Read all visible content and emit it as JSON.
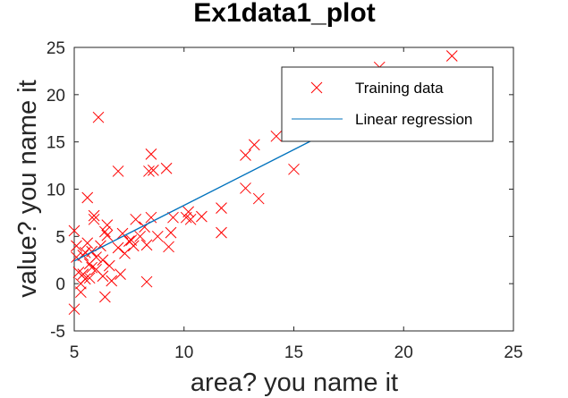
{
  "chart_data": {
    "type": "scatter",
    "title": "Ex1data1_plot",
    "xlabel": "area? you name it",
    "ylabel": "value? you name it",
    "xlim": [
      5,
      25
    ],
    "ylim": [
      -5,
      25
    ],
    "xticks": [
      "5",
      "10",
      "15",
      "20",
      "25"
    ],
    "yticks": [
      "-5",
      "0",
      "5",
      "10",
      "15",
      "20",
      "25"
    ],
    "box": true,
    "grid": false,
    "legend": {
      "position": "top-right",
      "entries": [
        "Training data",
        "Linear regression"
      ]
    },
    "colors": {
      "training": "#ff0000",
      "regression": "#0072bd"
    },
    "series": [
      {
        "name": "Training data",
        "kind": "scatter",
        "marker": "x",
        "points": [
          [
            5.0,
            5.6
          ],
          [
            5.0,
            -2.7
          ],
          [
            5.1,
            4.0
          ],
          [
            5.1,
            2.8
          ],
          [
            5.2,
            1.2
          ],
          [
            5.3,
            -0.9
          ],
          [
            5.3,
            0.0
          ],
          [
            5.4,
            3.0
          ],
          [
            5.4,
            1.0
          ],
          [
            5.5,
            3.3
          ],
          [
            5.5,
            0.5
          ],
          [
            5.6,
            9.1
          ],
          [
            5.6,
            4.3
          ],
          [
            5.7,
            2.1
          ],
          [
            5.7,
            0.6
          ],
          [
            5.8,
            3.4
          ],
          [
            5.8,
            1.7
          ],
          [
            5.9,
            7.2
          ],
          [
            5.9,
            6.8
          ],
          [
            6.0,
            2.8
          ],
          [
            6.0,
            1.5
          ],
          [
            6.1,
            17.6
          ],
          [
            6.2,
            4.0
          ],
          [
            6.3,
            2.5
          ],
          [
            6.3,
            0.8
          ],
          [
            6.4,
            5.5
          ],
          [
            6.4,
            -1.4
          ],
          [
            6.5,
            6.2
          ],
          [
            6.5,
            5.1
          ],
          [
            6.6,
            1.9
          ],
          [
            6.7,
            0.3
          ],
          [
            7.0,
            11.9
          ],
          [
            7.0,
            3.8
          ],
          [
            7.1,
            1.0
          ],
          [
            7.2,
            5.3
          ],
          [
            7.3,
            3.2
          ],
          [
            7.5,
            4.5
          ],
          [
            7.6,
            4.6
          ],
          [
            7.7,
            4.0
          ],
          [
            7.8,
            6.8
          ],
          [
            8.0,
            5.0
          ],
          [
            8.2,
            6.0
          ],
          [
            8.3,
            4.1
          ],
          [
            8.3,
            0.2
          ],
          [
            8.4,
            11.9
          ],
          [
            8.5,
            7.0
          ],
          [
            8.5,
            13.7
          ],
          [
            8.6,
            12.0
          ],
          [
            8.8,
            5.0
          ],
          [
            9.2,
            12.2
          ],
          [
            9.3,
            3.9
          ],
          [
            9.4,
            5.4
          ],
          [
            9.5,
            7.0
          ],
          [
            10.1,
            7.0
          ],
          [
            10.2,
            7.6
          ],
          [
            10.3,
            6.8
          ],
          [
            10.8,
            7.1
          ],
          [
            11.7,
            8.0
          ],
          [
            11.7,
            5.4
          ],
          [
            12.8,
            13.6
          ],
          [
            12.8,
            10.1
          ],
          [
            13.2,
            14.7
          ],
          [
            13.4,
            9.0
          ],
          [
            14.2,
            15.6
          ],
          [
            15.0,
            12.1
          ],
          [
            18.9,
            22.9
          ],
          [
            22.2,
            24.1
          ]
        ]
      },
      {
        "name": "Linear regression",
        "kind": "line",
        "points": [
          [
            5.0,
            2.4
          ],
          [
            16.8,
            16.3
          ]
        ]
      }
    ]
  }
}
